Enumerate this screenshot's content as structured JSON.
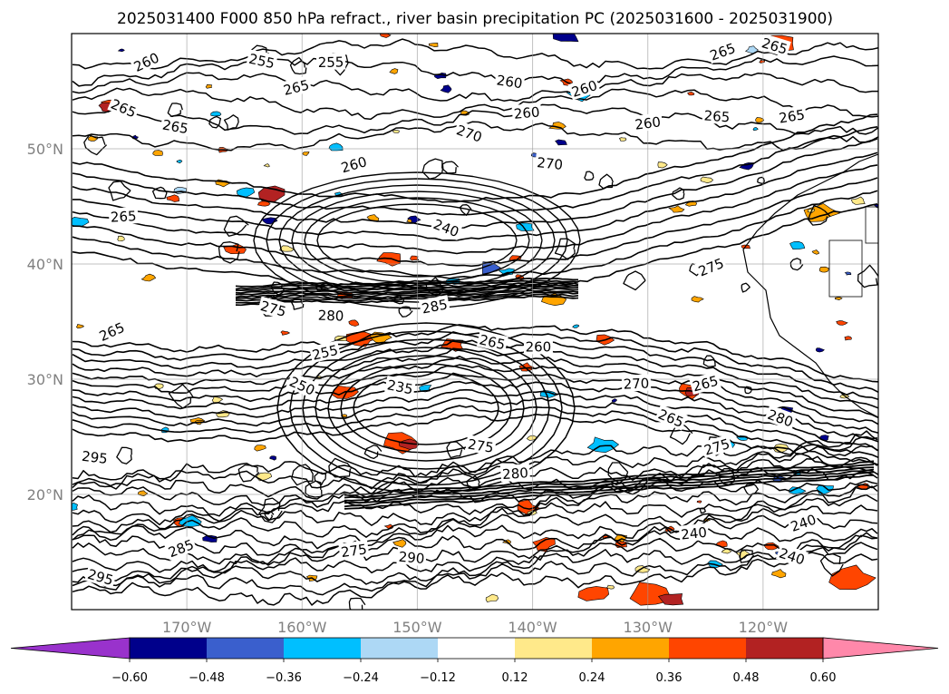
{
  "chart_data": {
    "type": "contour map",
    "title": "2025031400 F000 850 hPa refract., river basin precipitation PC (2025031600 - 2025031900)",
    "map": {
      "projection": "lat-lon",
      "lon_range": [
        -180,
        -110
      ],
      "lat_range": [
        10,
        60
      ],
      "grid": true,
      "x_ticks": [
        {
          "lon": -170,
          "label": "170°W"
        },
        {
          "lon": -160,
          "label": "160°W"
        },
        {
          "lon": -150,
          "label": "150°W"
        },
        {
          "lon": -140,
          "label": "140°W"
        },
        {
          "lon": -130,
          "label": "130°W"
        },
        {
          "lon": -120,
          "label": "120°W"
        }
      ],
      "y_ticks": [
        {
          "lat": 20,
          "label": "20°N"
        },
        {
          "lat": 30,
          "label": "30°N"
        },
        {
          "lat": 40,
          "label": "40°N"
        },
        {
          "lat": 50,
          "label": "50°N"
        }
      ]
    },
    "colorbar": {
      "extend": "both",
      "levels": [
        -0.6,
        -0.48,
        -0.36,
        -0.24,
        -0.12,
        0.12,
        0.24,
        0.36,
        0.48,
        0.6
      ],
      "tick_labels": [
        "−0.60",
        "−0.48",
        "−0.36",
        "−0.24",
        "−0.12",
        "0.12",
        "0.24",
        "0.36",
        "0.48",
        "0.60"
      ],
      "colors": [
        "#9932cc",
        "#00008b",
        "#3a5fcd",
        "#00bfff",
        "#add8f5",
        "#ffffff",
        "#ffe98a",
        "#ffa500",
        "#ff4500",
        "#b22222",
        "#ff88aa"
      ]
    },
    "refractivity_contours": {
      "units": "N-units",
      "labels": [
        {
          "lon": -173.5,
          "lat": 57.5,
          "v": "260"
        },
        {
          "lon": -163.5,
          "lat": 57.6,
          "v": "255"
        },
        {
          "lon": -157.5,
          "lat": 57.5,
          "v": "255"
        },
        {
          "lon": -160.5,
          "lat": 55.3,
          "v": "265"
        },
        {
          "lon": -175.5,
          "lat": 53.5,
          "v": "265"
        },
        {
          "lon": -171,
          "lat": 51.9,
          "v": "265"
        },
        {
          "lon": -175.5,
          "lat": 44.1,
          "v": "265"
        },
        {
          "lon": -155.5,
          "lat": 48.6,
          "v": "260"
        },
        {
          "lon": -147.5,
          "lat": 43.1,
          "v": "240"
        },
        {
          "lon": -142,
          "lat": 55.8,
          "v": "260"
        },
        {
          "lon": -140.5,
          "lat": 53.1,
          "v": "260"
        },
        {
          "lon": -135.5,
          "lat": 55.2,
          "v": "260"
        },
        {
          "lon": -145.5,
          "lat": 51.3,
          "v": "270"
        },
        {
          "lon": -138.5,
          "lat": 48.7,
          "v": "270"
        },
        {
          "lon": -130,
          "lat": 52.2,
          "v": "260"
        },
        {
          "lon": -123.5,
          "lat": 58.4,
          "v": "265"
        },
        {
          "lon": -119,
          "lat": 58.9,
          "v": "265"
        },
        {
          "lon": -124,
          "lat": 52.8,
          "v": "265"
        },
        {
          "lon": -117.5,
          "lat": 52.8,
          "v": "265"
        },
        {
          "lon": -124.5,
          "lat": 39.7,
          "v": "275"
        },
        {
          "lon": -162.5,
          "lat": 36.1,
          "v": "275"
        },
        {
          "lon": -157.5,
          "lat": 35.5,
          "v": "280"
        },
        {
          "lon": -148.5,
          "lat": 36.3,
          "v": "285"
        },
        {
          "lon": -176.5,
          "lat": 34.1,
          "v": "265"
        },
        {
          "lon": -143.5,
          "lat": 33.2,
          "v": "265"
        },
        {
          "lon": -139.5,
          "lat": 32.8,
          "v": "260"
        },
        {
          "lon": -158,
          "lat": 32.3,
          "v": "255"
        },
        {
          "lon": -160,
          "lat": 29.4,
          "v": "250"
        },
        {
          "lon": -151.5,
          "lat": 29.3,
          "v": "235"
        },
        {
          "lon": -131,
          "lat": 29.6,
          "v": "270"
        },
        {
          "lon": -125,
          "lat": 29.6,
          "v": "265"
        },
        {
          "lon": -128,
          "lat": 26.6,
          "v": "265"
        },
        {
          "lon": -144.5,
          "lat": 24.2,
          "v": "275"
        },
        {
          "lon": -141.5,
          "lat": 21.8,
          "v": "280"
        },
        {
          "lon": -124,
          "lat": 24.1,
          "v": "275"
        },
        {
          "lon": -118.5,
          "lat": 26.6,
          "v": "280"
        },
        {
          "lon": -178,
          "lat": 23.2,
          "v": "295"
        },
        {
          "lon": -126,
          "lat": 16.6,
          "v": "240"
        },
        {
          "lon": -116.5,
          "lat": 17.5,
          "v": "240"
        },
        {
          "lon": -117.5,
          "lat": 14.6,
          "v": "240"
        },
        {
          "lon": -150.5,
          "lat": 14.5,
          "v": "290"
        },
        {
          "lon": -155.5,
          "lat": 15.1,
          "v": "275"
        },
        {
          "lon": -170.5,
          "lat": 15.3,
          "v": "285"
        },
        {
          "lon": -177.5,
          "lat": 12.8,
          "v": "295"
        }
      ]
    }
  }
}
